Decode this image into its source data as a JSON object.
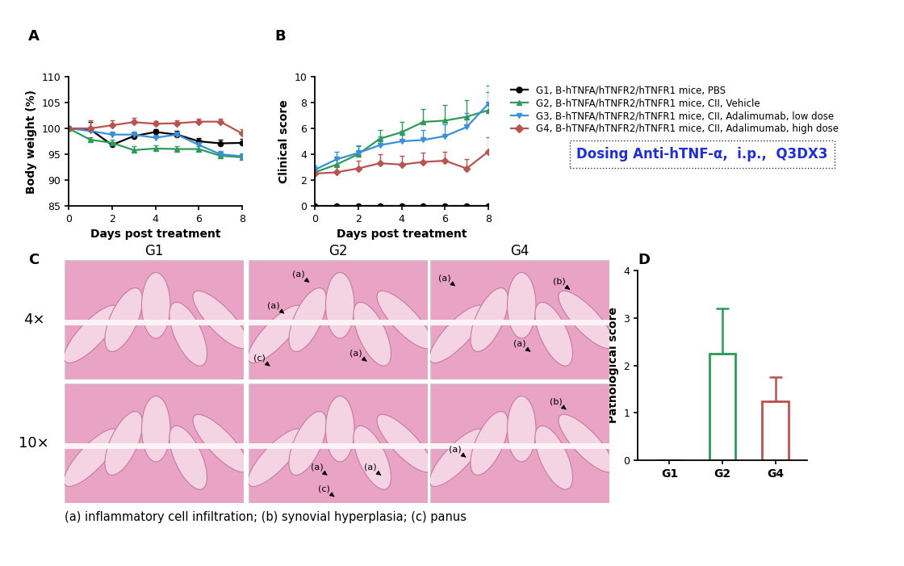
{
  "chart_data": [
    {
      "panel_label": "A",
      "type": "line",
      "xlabel": "Days post treatment",
      "ylabel": "Body weight (%)",
      "x": [
        0,
        1,
        2,
        3,
        4,
        5,
        6,
        7,
        8
      ],
      "xlim": [
        0,
        8
      ],
      "xticks": [
        0,
        2,
        4,
        6,
        8
      ],
      "ylim": [
        85,
        110
      ],
      "yticks": [
        85,
        90,
        95,
        100,
        105,
        110
      ],
      "series": [
        {
          "name": "G1, B-hTNFA/hTNFR2/hTNFR1 mice, PBS",
          "color": "#000000",
          "marker": "o",
          "values": [
            100,
            99.8,
            96.8,
            98.5,
            99.3,
            98.8,
            97.5,
            97.1,
            97.2
          ],
          "errors": [
            0,
            1.5,
            0.3,
            0.6,
            0.5,
            0.8,
            0.6,
            0.7,
            0.8
          ]
        },
        {
          "name": "G2, B-hTNFA/hTNFR2/hTNFR1 mice, CII, Vehicle",
          "color": "#2e9b5a",
          "marker": "^",
          "values": [
            100,
            97.8,
            97.2,
            95.8,
            96.1,
            96.0,
            96.0,
            94.7,
            94.4
          ],
          "errors": [
            0,
            0.5,
            0.6,
            0.8,
            0.6,
            0.5,
            0.6,
            0.5,
            0.6
          ]
        },
        {
          "name": "G3, B-hTNFA/hTNFR2/hTNFR1 mice, CII, Adalimumab, low dose",
          "color": "#3a8fd9",
          "marker": "v",
          "values": [
            100,
            99.5,
            98.8,
            98.8,
            98.2,
            98.8,
            96.8,
            95.0,
            94.6
          ],
          "errors": [
            0,
            0.5,
            0.5,
            0.6,
            0.6,
            0.5,
            0.8,
            0.6,
            0.5
          ]
        },
        {
          "name": "G4, B-hTNFA/hTNFR2/hTNFR1 mice, CII, Adalimumab, high dose",
          "color": "#b85450",
          "marker": "D",
          "values": [
            100,
            100.0,
            100.6,
            101.2,
            100.9,
            101.0,
            101.3,
            101.3,
            99.0
          ],
          "errors": [
            0,
            1.5,
            1.0,
            0.8,
            0.5,
            0.6,
            0.5,
            0.6,
            0.8
          ]
        }
      ]
    },
    {
      "panel_label": "B",
      "type": "line",
      "xlabel": "Days post treatment",
      "ylabel": "Clinical score",
      "x": [
        0,
        1,
        2,
        3,
        4,
        5,
        6,
        7,
        8
      ],
      "xlim": [
        0,
        8
      ],
      "xticks": [
        0,
        2,
        4,
        6,
        8
      ],
      "ylim": [
        0,
        10
      ],
      "yticks": [
        0,
        2,
        4,
        6,
        8,
        10
      ],
      "legend": "upper left",
      "annotations": [
        "Dosing Anti-hTNF-α,  i.p.,  Q3DX3"
      ],
      "series": [
        {
          "name": "G1, B-hTNFA/hTNFR2/hTNFR1 mice, PBS",
          "color": "#000000",
          "marker": "o",
          "values": [
            0,
            0,
            0,
            0,
            0,
            0,
            0,
            0,
            0
          ],
          "errors": [
            0,
            0,
            0,
            0,
            0,
            0,
            0,
            0,
            0
          ]
        },
        {
          "name": "G2, B-hTNFA/hTNFR2/hTNFR1 mice, CII, Vehicle",
          "color": "#2e9b5a",
          "marker": "^",
          "values": [
            2.6,
            3.2,
            4.0,
            5.2,
            5.7,
            6.5,
            6.6,
            6.9,
            7.4
          ],
          "errors": [
            0.3,
            0.6,
            0.6,
            0.7,
            0.8,
            1.0,
            1.2,
            1.3,
            1.4
          ]
        },
        {
          "name": "G3, B-hTNFA/hTNFR2/hTNFR1 mice, CII, Adalimumab, low dose",
          "color": "#3a8fd9",
          "marker": "v",
          "values": [
            2.8,
            3.6,
            4.1,
            4.7,
            5.0,
            5.1,
            5.4,
            6.1,
            7.9
          ],
          "errors": [
            0.3,
            0.6,
            0.6,
            0.7,
            0.8,
            0.8,
            0.9,
            1.1,
            1.4
          ]
        },
        {
          "name": "G4, B-hTNFA/hTNFR2/hTNFR1 mice, CII, Adalimumab, high dose",
          "color": "#b85450",
          "marker": "D",
          "values": [
            2.5,
            2.6,
            2.9,
            3.3,
            3.2,
            3.4,
            3.5,
            2.9,
            4.2
          ],
          "errors": [
            0.2,
            0.5,
            0.6,
            0.7,
            0.7,
            0.7,
            0.7,
            0.7,
            1.1
          ]
        }
      ]
    },
    {
      "panel_label": "D",
      "type": "bar",
      "ylabel": "Pathological score",
      "categories": [
        "G1",
        "G2",
        "G4"
      ],
      "values": [
        0,
        2.25,
        1.25
      ],
      "errors": [
        0,
        0.95,
        0.5
      ],
      "colors": [
        "#000000",
        "#2e9b5a",
        "#b85450"
      ],
      "ylim": [
        0,
        4
      ],
      "yticks": [
        0,
        1,
        2,
        3,
        4
      ]
    }
  ],
  "histology": {
    "panel_label": "C",
    "columns": [
      "G1",
      "G2",
      "G4"
    ],
    "rows": [
      "4×",
      "10×"
    ],
    "labels": [
      [
        [],
        [
          "(a)",
          "(a)",
          "(c)",
          "(a)"
        ],
        [
          "(a)",
          "(b)",
          "(a)"
        ]
      ],
      [
        [],
        [
          "(a)",
          "(c)",
          "(a)"
        ],
        [
          "(b)",
          "(a)"
        ]
      ]
    ],
    "caption": "(a) inflammatory cell infiltration; (b) synovial hyperplasia; (c) panus"
  }
}
